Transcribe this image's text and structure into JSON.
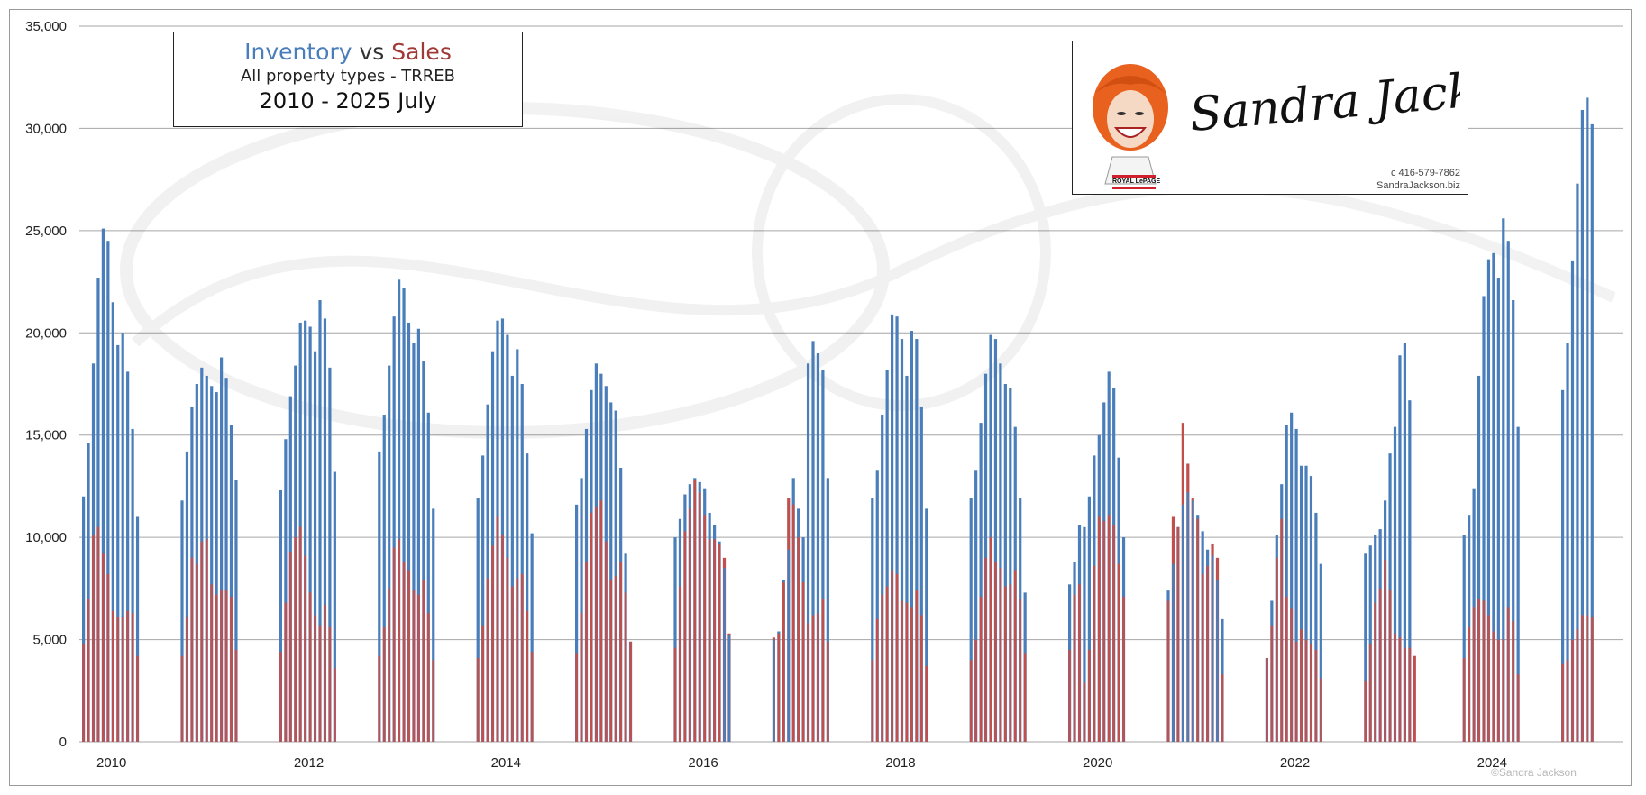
{
  "title": {
    "inventory_word": "Inventory",
    "vs_word": "vs",
    "sales_word": "Sales",
    "subtitle": "All property types - TRREB",
    "range": "2010 - 2025 July"
  },
  "logo": {
    "signature": "Sandra Jackson",
    "phone": "c 416-579-7862",
    "website": "SandraJackson.biz",
    "brand": "ROYAL LePAGE"
  },
  "copyright": "©Sandra Jackson",
  "colors": {
    "inventory": "#4a7ebb",
    "sales": "#c0504d",
    "grid": "#a6a6a6"
  },
  "chart_data": {
    "type": "bar",
    "ylim": [
      0,
      35000
    ],
    "yticks": [
      "0",
      "5,000",
      "10,000",
      "15,000",
      "20,000",
      "25,000",
      "30,000",
      "35,000"
    ],
    "grid": "horizontal",
    "legend": "none",
    "x_labels": [
      "2010",
      "2012",
      "2014",
      "2016",
      "2018",
      "2020",
      "2022",
      "2024"
    ],
    "x_label_years": [
      2010,
      2012,
      2014,
      2016,
      2018,
      2020,
      2022,
      2024
    ],
    "series": [
      {
        "name": "Inventory",
        "values": [
          [
            12000,
            14600,
            18500,
            22700,
            25100,
            24500,
            21500,
            19400,
            20000,
            18100,
            15300,
            11000
          ],
          [
            11800,
            14200,
            16400,
            17500,
            18300,
            17900,
            17400,
            17100,
            18800,
            17800,
            15500,
            12800
          ],
          [
            12300,
            14800,
            16900,
            18400,
            20500,
            20600,
            20300,
            19100,
            21600,
            20700,
            18300,
            13200
          ],
          [
            14200,
            16000,
            18400,
            20800,
            22600,
            22200,
            20500,
            19500,
            20200,
            18600,
            16100,
            11400
          ],
          [
            11900,
            14000,
            16500,
            19100,
            20600,
            20700,
            19900,
            17900,
            19200,
            17500,
            14100,
            10200
          ],
          [
            11600,
            12900,
            15300,
            17200,
            18500,
            18000,
            17400,
            16600,
            16200,
            13400,
            9200,
            4900
          ],
          [
            10000,
            10900,
            12100,
            12600,
            12900,
            12700,
            12400,
            11200,
            10600,
            9800,
            8500,
            5200
          ],
          [
            5000,
            5400,
            7900,
            9400,
            12900,
            11400,
            10000,
            18500,
            19600,
            19000,
            18200,
            12900
          ],
          [
            11900,
            13300,
            16000,
            18200,
            20900,
            20800,
            19700,
            17900,
            20100,
            19700,
            16400,
            11400
          ],
          [
            11900,
            13300,
            15600,
            18000,
            19900,
            19700,
            18500,
            17500,
            17300,
            15400,
            11900,
            7300
          ],
          [
            7700,
            8800,
            10600,
            10500,
            12000,
            14000,
            15000,
            16600,
            18100,
            17300,
            13900,
            10000
          ],
          [
            7400,
            8700,
            10500,
            11600,
            12200,
            11800,
            11100,
            10300,
            9400,
            9100,
            7900,
            6000
          ],
          [
            4100,
            6900,
            10100,
            12600,
            15500,
            16100,
            15300,
            13500,
            13500,
            13000,
            11200,
            8700
          ],
          [
            9200,
            9600,
            10100,
            10400,
            11800,
            14100,
            15400,
            18900,
            19500,
            16700,
            0,
            0
          ],
          [
            10100,
            11100,
            12400,
            17900,
            21800,
            23600,
            23900,
            22700,
            25600,
            24500,
            21600,
            15400
          ],
          [
            17200,
            19500,
            23500,
            27300,
            30900,
            31500,
            30200,
            0,
            0,
            0,
            0,
            0
          ]
        ]
      },
      {
        "name": "Sales",
        "values": [
          [
            4800,
            7000,
            10100,
            10500,
            9200,
            8200,
            6400,
            6100,
            6100,
            6400,
            6300,
            4200
          ],
          [
            4200,
            6100,
            9000,
            8700,
            9800,
            9900,
            7700,
            7200,
            7400,
            7400,
            7100,
            4500
          ],
          [
            4400,
            6800,
            9300,
            10000,
            10500,
            9100,
            7300,
            6200,
            5700,
            6700,
            5600,
            3600
          ],
          [
            4200,
            5600,
            7500,
            9500,
            9900,
            8800,
            8400,
            7400,
            7200,
            7900,
            6300,
            4000
          ],
          [
            4100,
            5700,
            8000,
            9600,
            11000,
            10100,
            9000,
            7600,
            8000,
            8200,
            6400,
            4400
          ],
          [
            4300,
            6300,
            8800,
            11200,
            11500,
            11800,
            9800,
            7900,
            8100,
            8800,
            7300,
            4900
          ],
          [
            4600,
            7600,
            10300,
            11400,
            12800,
            12200,
            11100,
            9900,
            9900,
            9700,
            9000,
            5300
          ],
          [
            5100,
            5300,
            7800,
            11900,
            11600,
            10000,
            7800,
            5800,
            6200,
            6300,
            7000,
            4900
          ],
          [
            4000,
            6000,
            7200,
            7600,
            8400,
            8200,
            6900,
            6800,
            6600,
            7400,
            6200,
            3700
          ],
          [
            4000,
            5000,
            7100,
            9000,
            10000,
            8800,
            8500,
            7600,
            7700,
            8400,
            7000,
            4300
          ],
          [
            4500,
            7200,
            7700,
            2900,
            4500,
            8600,
            11000,
            10800,
            11100,
            10600,
            8700,
            7100
          ],
          [
            6900,
            11000,
            10500,
            15600,
            13600,
            11900,
            10900,
            8200,
            8600,
            9700,
            9000,
            3300
          ],
          [
            4100,
            5700,
            9000,
            10900,
            7100,
            6500,
            4900,
            5500,
            5000,
            4800,
            4500,
            3100
          ],
          [
            3000,
            4800,
            6800,
            7500,
            8900,
            7400,
            5300,
            5100,
            4600,
            4600,
            4200,
            0
          ],
          [
            4100,
            5600,
            6600,
            7000,
            6900,
            6200,
            5400,
            5000,
            5000,
            6600,
            5900,
            3300
          ],
          [
            3800,
            4000,
            5000,
            5500,
            6200,
            6200,
            6100,
            0,
            0,
            0,
            0,
            0
          ]
        ]
      }
    ]
  }
}
